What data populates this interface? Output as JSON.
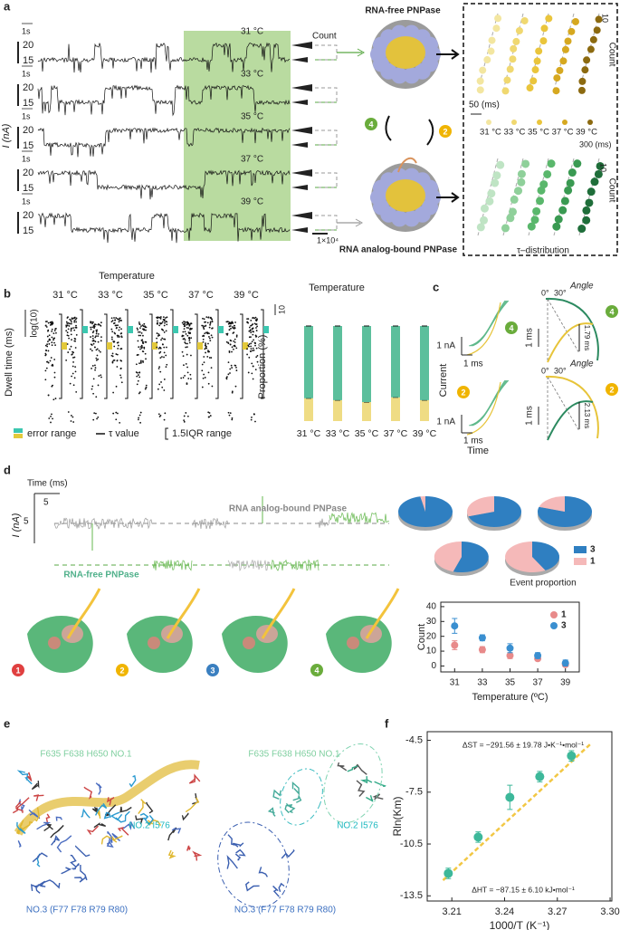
{
  "panels": {
    "a": {
      "label": "a",
      "y_axis": "I (nA)",
      "rows": [
        {
          "scale": "1s",
          "temperature": "31 °C",
          "ticks": [
            "20",
            "15"
          ]
        },
        {
          "scale": "1s",
          "temperature": "33 °C",
          "ticks": [
            "20",
            "15"
          ]
        },
        {
          "scale": "1s",
          "temperature": "35 °C",
          "ticks": [
            "20",
            "15"
          ]
        },
        {
          "scale": "1s",
          "temperature": "37 °C",
          "ticks": [
            "20",
            "15"
          ]
        },
        {
          "scale": "1s",
          "temperature": "39 °C",
          "ticks": [
            "20",
            "15"
          ]
        }
      ],
      "count_label": "Count",
      "count_scale": "1×10⁴",
      "free": "RNA-free PNPase",
      "bound": "RNA analog-bound PNPase",
      "state_4": "4",
      "state_2": "2",
      "top_scale": "10",
      "top_count": "Count",
      "time_scale": "50 (ms)",
      "temperatures": "31 °C 33 °C 35 °C 37 °C 39 °C",
      "bottom_time_scale": "300 (ms)",
      "bottom_scale": "10",
      "bottom_count": "Count",
      "tau": "τ–distribution"
    },
    "b": {
      "label": "b",
      "title": "Temperature",
      "temperatures": [
        "31 °C",
        "33 °C",
        "35 °C",
        "37 °C",
        "39 °C"
      ],
      "y_axis": "Dwell time (ms)",
      "y_scale": "log(10)",
      "legend": [
        "error range",
        "τ value",
        "1.5IQR range"
      ]
    },
    "c": {
      "label": "c",
      "top_state": "4",
      "bottom_state": "2",
      "current_scale": "1 nA",
      "time_scale": "1 ms",
      "current_scale_2": "1 nA",
      "time_scale_2": "1 ms",
      "y_axis": "Current",
      "x_axis": "Time",
      "angle_top": {
        "zero": "0°",
        "thirty": "30°",
        "angle": "Angle",
        "duration": "1.79 ms",
        "scale": "1 ms",
        "state": "4"
      },
      "angle_bottom": {
        "zero": "0°",
        "thirty": "30°",
        "angle": "Angle",
        "duration": "2.13 ms",
        "scale": "1 ms",
        "state": "2"
      }
    },
    "d": {
      "label": "d",
      "time_axis": "Time (ms)",
      "time_scale": "5",
      "current_scale": "5",
      "y_axis": "I (nA)",
      "bound": "RNA analog-bound PNPase",
      "free": "RNA-free PNPase",
      "states": [
        "1",
        "2",
        "3",
        "4"
      ]
    },
    "e": {
      "label": "e",
      "left": {
        "site1": "F635 F638 H650 NO.1",
        "site2": "NO.2 I576",
        "site3": "NO.3 (F77 F78 R79 R80)"
      },
      "right": {
        "site1": "F635 F638 H650 NO.1",
        "site2": "NO.2 I576",
        "site3": "NO.3 (F77 F78 R79 R80)"
      }
    },
    "f": {
      "label": "f"
    }
  },
  "chart_data": [
    {
      "type": "bar",
      "stacked": true,
      "title": "Temperature",
      "y_label": "Proportion (%)",
      "scale_label": "10",
      "categories": [
        "31 °C",
        "33 °C",
        "35 °C",
        "37 °C",
        "39 °C"
      ],
      "ylim": [
        0,
        100
      ],
      "series": [
        {
          "color": "#efdc84",
          "values": [
            24,
            22,
            20,
            25,
            22
          ]
        },
        {
          "color": "#5cbf9c",
          "values": [
            76,
            78,
            80,
            75,
            78
          ]
        }
      ]
    },
    {
      "type": "pie",
      "title": "Event proportion",
      "series": [
        {
          "name": "3",
          "color": "#2f7fc1",
          "values": [
            97,
            70,
            80,
            55,
            42
          ]
        },
        {
          "name": "1",
          "color": "#f5b9b9",
          "values": [
            3,
            30,
            20,
            45,
            58
          ]
        }
      ]
    },
    {
      "type": "scatter",
      "x_label": "Temperature (ºC)",
      "y_label": "Count",
      "x": [
        31,
        33,
        35,
        37,
        39
      ],
      "xlim": [
        30,
        40
      ],
      "xticks": [
        31,
        33,
        35,
        37,
        39
      ],
      "ylim": [
        -4,
        43
      ],
      "yticks": [
        0,
        10,
        20,
        30,
        40
      ],
      "legend": "top-right",
      "series": [
        {
          "name": "1",
          "color": "#e88a8a",
          "values": [
            14,
            11,
            7,
            5,
            1
          ],
          "errors": [
            3,
            2,
            2,
            1,
            1
          ]
        },
        {
          "name": "3",
          "color": "#3a8fd0",
          "values": [
            27,
            19,
            12,
            7,
            2
          ],
          "errors": [
            5,
            2,
            3,
            2,
            2
          ]
        }
      ]
    },
    {
      "type": "scatter",
      "x_label": "1000/T (K⁻¹)",
      "y_label": "Rln(Km)",
      "x": [
        3.208,
        3.225,
        3.243,
        3.26,
        3.278
      ],
      "xlim": [
        3.196,
        3.301
      ],
      "xticks": [
        3.21,
        3.24,
        3.27,
        {
          "value": 3.3,
          "label": "3.30"
        }
      ],
      "ylim": [
        -13.8,
        -4.0
      ],
      "yticks": [
        -4.5,
        -7.5,
        -10.5,
        -13.5
      ],
      "series": [
        {
          "color": "#3db89a",
          "values": [
            -12.2,
            -10.1,
            -7.8,
            -6.6,
            -5.4
          ],
          "errors": [
            0.3,
            0.3,
            0.7,
            0.3,
            0.3
          ]
        }
      ],
      "fit": {
        "color": "#f2c744",
        "x": [
          3.205,
          3.289
        ],
        "values": [
          -12.6,
          -4.7
        ]
      },
      "annotations": [
        "ΔST = −291.56 ± 19.78 J•K⁻¹•mol⁻¹",
        "ΔHT = −87.15 ± 6.10 kJ•mol⁻¹"
      ]
    }
  ]
}
